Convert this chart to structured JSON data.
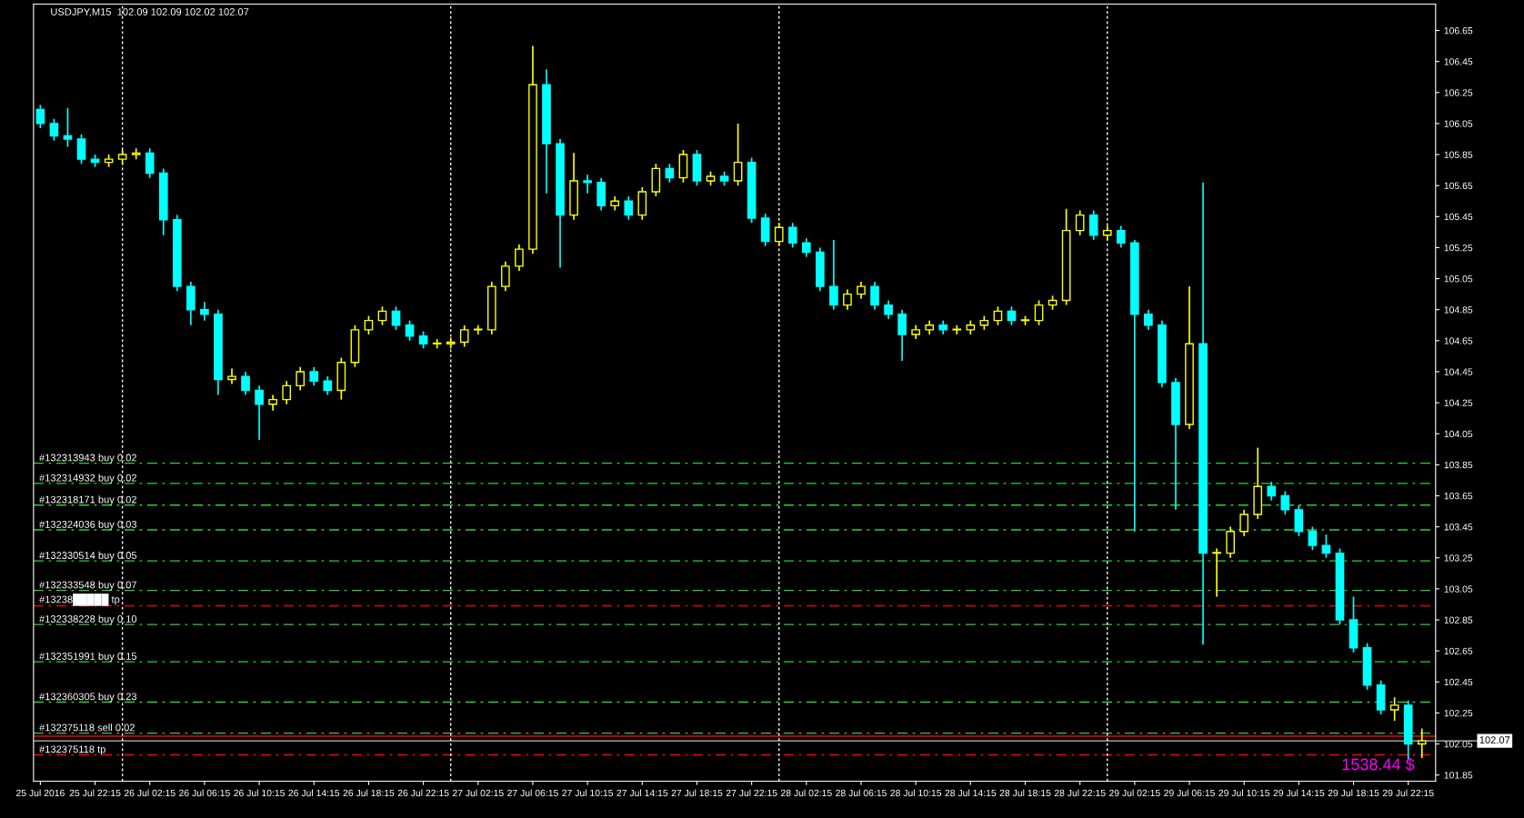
{
  "chart_data": {
    "type": "candlestick",
    "title": "USDJPY,M15  102.09 102.09 102.02 102.07",
    "x": [
      "2016-07-25T18:15",
      "2016-07-25T19:15",
      "2016-07-25T20:15",
      "2016-07-25T21:15",
      "2016-07-25T22:15",
      "2016-07-25T23:15",
      "2016-07-26T00:15",
      "2016-07-26T01:15",
      "2016-07-26T02:15",
      "2016-07-26T03:15",
      "2016-07-26T04:15",
      "2016-07-26T05:15",
      "2016-07-26T06:15",
      "2016-07-26T07:15",
      "2016-07-26T08:15",
      "2016-07-26T09:15",
      "2016-07-26T10:15",
      "2016-07-26T11:15",
      "2016-07-26T12:15",
      "2016-07-26T13:15",
      "2016-07-26T14:15",
      "2016-07-26T15:15",
      "2016-07-26T16:15",
      "2016-07-26T17:15",
      "2016-07-26T18:15",
      "2016-07-26T19:15",
      "2016-07-26T20:15",
      "2016-07-26T21:15",
      "2016-07-26T22:15",
      "2016-07-26T23:15",
      "2016-07-27T00:15",
      "2016-07-27T01:15",
      "2016-07-27T02:15",
      "2016-07-27T03:15",
      "2016-07-27T04:15",
      "2016-07-27T05:15",
      "2016-07-27T06:15",
      "2016-07-27T07:15",
      "2016-07-27T08:15",
      "2016-07-27T09:15",
      "2016-07-27T10:15",
      "2016-07-27T11:15",
      "2016-07-27T12:15",
      "2016-07-27T13:15",
      "2016-07-27T14:15",
      "2016-07-27T15:15",
      "2016-07-27T16:15",
      "2016-07-27T17:15",
      "2016-07-27T18:15",
      "2016-07-27T19:15",
      "2016-07-27T20:15",
      "2016-07-27T21:15",
      "2016-07-27T22:15",
      "2016-07-27T23:15",
      "2016-07-28T00:15",
      "2016-07-28T01:15",
      "2016-07-28T02:15",
      "2016-07-28T03:15",
      "2016-07-28T04:15",
      "2016-07-28T05:15",
      "2016-07-28T06:15",
      "2016-07-28T07:15",
      "2016-07-28T08:15",
      "2016-07-28T09:15",
      "2016-07-28T10:15",
      "2016-07-28T11:15",
      "2016-07-28T12:15",
      "2016-07-28T13:15",
      "2016-07-28T14:15",
      "2016-07-28T15:15",
      "2016-07-28T16:15",
      "2016-07-28T17:15",
      "2016-07-28T18:15",
      "2016-07-28T19:15",
      "2016-07-28T20:15",
      "2016-07-28T21:15",
      "2016-07-28T22:15",
      "2016-07-28T23:15",
      "2016-07-29T00:15",
      "2016-07-29T01:15",
      "2016-07-29T02:15",
      "2016-07-29T03:15",
      "2016-07-29T04:15",
      "2016-07-29T05:15",
      "2016-07-29T06:15",
      "2016-07-29T07:15",
      "2016-07-29T08:15",
      "2016-07-29T09:15",
      "2016-07-29T10:15",
      "2016-07-29T11:15",
      "2016-07-29T12:15",
      "2016-07-29T13:15",
      "2016-07-29T14:15",
      "2016-07-29T15:15",
      "2016-07-29T16:15",
      "2016-07-29T17:15",
      "2016-07-29T18:15",
      "2016-07-29T19:15",
      "2016-07-29T20:15",
      "2016-07-29T21:15",
      "2016-07-29T22:15",
      "2016-07-29T23:15"
    ],
    "ohlc": [
      [
        106.14,
        106.17,
        106.02,
        106.05
      ],
      [
        106.05,
        106.08,
        105.94,
        105.97
      ],
      [
        105.97,
        106.15,
        105.9,
        105.95
      ],
      [
        105.95,
        105.98,
        105.79,
        105.82
      ],
      [
        105.82,
        105.85,
        105.77,
        105.8
      ],
      [
        105.8,
        105.85,
        105.77,
        105.82
      ],
      [
        105.82,
        105.88,
        105.79,
        105.85
      ],
      [
        105.85,
        105.89,
        105.82,
        105.86
      ],
      [
        105.86,
        105.89,
        105.7,
        105.73
      ],
      [
        105.73,
        105.76,
        105.33,
        105.43
      ],
      [
        105.43,
        105.46,
        104.97,
        105.0
      ],
      [
        105.0,
        105.03,
        104.75,
        104.85
      ],
      [
        104.85,
        104.9,
        104.78,
        104.82
      ],
      [
        104.82,
        104.85,
        104.3,
        104.4
      ],
      [
        104.4,
        104.47,
        104.37,
        104.42
      ],
      [
        104.42,
        104.45,
        104.3,
        104.33
      ],
      [
        104.33,
        104.36,
        104.01,
        104.24
      ],
      [
        104.24,
        104.3,
        104.2,
        104.27
      ],
      [
        104.27,
        104.39,
        104.24,
        104.36
      ],
      [
        104.36,
        104.48,
        104.33,
        104.45
      ],
      [
        104.45,
        104.48,
        104.36,
        104.39
      ],
      [
        104.39,
        104.42,
        104.3,
        104.33
      ],
      [
        104.33,
        104.54,
        104.27,
        104.51
      ],
      [
        104.51,
        104.75,
        104.48,
        104.72
      ],
      [
        104.72,
        104.81,
        104.69,
        104.78
      ],
      [
        104.78,
        104.87,
        104.75,
        104.84
      ],
      [
        104.84,
        104.87,
        104.72,
        104.75
      ],
      [
        104.75,
        104.78,
        104.65,
        104.68
      ],
      [
        104.68,
        104.71,
        104.6,
        104.63
      ],
      [
        104.63,
        104.66,
        104.6,
        104.63
      ],
      [
        104.63,
        104.67,
        104.6,
        104.64
      ],
      [
        104.64,
        104.75,
        104.61,
        104.72
      ],
      [
        104.72,
        104.75,
        104.69,
        104.72
      ],
      [
        104.72,
        105.03,
        104.69,
        105.0
      ],
      [
        105.0,
        105.16,
        104.97,
        105.13
      ],
      [
        105.13,
        105.27,
        105.1,
        105.24
      ],
      [
        105.24,
        106.55,
        105.21,
        106.3
      ],
      [
        106.3,
        106.4,
        105.6,
        105.92
      ],
      [
        105.92,
        105.95,
        105.12,
        105.46
      ],
      [
        105.46,
        105.86,
        105.43,
        105.68
      ],
      [
        105.68,
        105.72,
        105.6,
        105.67
      ],
      [
        105.67,
        105.7,
        105.49,
        105.52
      ],
      [
        105.52,
        105.58,
        105.49,
        105.55
      ],
      [
        105.55,
        105.58,
        105.43,
        105.46
      ],
      [
        105.46,
        105.64,
        105.43,
        105.61
      ],
      [
        105.61,
        105.79,
        105.58,
        105.76
      ],
      [
        105.76,
        105.79,
        105.67,
        105.7
      ],
      [
        105.7,
        105.88,
        105.67,
        105.85
      ],
      [
        105.85,
        105.88,
        105.65,
        105.68
      ],
      [
        105.68,
        105.74,
        105.65,
        105.71
      ],
      [
        105.71,
        105.74,
        105.65,
        105.68
      ],
      [
        105.68,
        106.05,
        105.65,
        105.8
      ],
      [
        105.8,
        105.83,
        105.41,
        105.44
      ],
      [
        105.44,
        105.47,
        105.26,
        105.29
      ],
      [
        105.29,
        105.41,
        105.26,
        105.38
      ],
      [
        105.38,
        105.41,
        105.25,
        105.28
      ],
      [
        105.28,
        105.31,
        105.19,
        105.22
      ],
      [
        105.22,
        105.25,
        104.97,
        105.0
      ],
      [
        105.0,
        105.3,
        104.85,
        104.88
      ],
      [
        104.88,
        104.98,
        104.85,
        104.95
      ],
      [
        104.95,
        105.03,
        104.92,
        105.0
      ],
      [
        105.0,
        105.03,
        104.85,
        104.88
      ],
      [
        104.88,
        104.91,
        104.79,
        104.82
      ],
      [
        104.82,
        104.85,
        104.52,
        104.69
      ],
      [
        104.69,
        104.75,
        104.66,
        104.72
      ],
      [
        104.72,
        104.78,
        104.69,
        104.75
      ],
      [
        104.75,
        104.78,
        104.69,
        104.72
      ],
      [
        104.72,
        104.75,
        104.69,
        104.72
      ],
      [
        104.72,
        104.78,
        104.69,
        104.75
      ],
      [
        104.75,
        104.81,
        104.72,
        104.78
      ],
      [
        104.78,
        104.87,
        104.75,
        104.84
      ],
      [
        104.84,
        104.87,
        104.75,
        104.78
      ],
      [
        104.78,
        104.81,
        104.75,
        104.78
      ],
      [
        104.78,
        104.91,
        104.75,
        104.88
      ],
      [
        104.88,
        104.94,
        104.85,
        104.91
      ],
      [
        104.91,
        105.5,
        104.88,
        105.36
      ],
      [
        105.36,
        105.49,
        105.33,
        105.46
      ],
      [
        105.46,
        105.49,
        105.3,
        105.33
      ],
      [
        105.33,
        105.39,
        105.3,
        105.36
      ],
      [
        105.36,
        105.39,
        105.25,
        105.28
      ],
      [
        105.28,
        105.3,
        103.42,
        104.82
      ],
      [
        104.82,
        104.85,
        104.72,
        104.75
      ],
      [
        104.75,
        104.78,
        104.35,
        104.38
      ],
      [
        104.38,
        104.41,
        103.56,
        104.11
      ],
      [
        104.11,
        105.0,
        104.08,
        104.63
      ],
      [
        104.63,
        105.67,
        102.69,
        103.28
      ],
      [
        103.28,
        103.31,
        103.0,
        103.28
      ],
      [
        103.28,
        103.45,
        103.25,
        103.42
      ],
      [
        103.42,
        103.56,
        103.39,
        103.53
      ],
      [
        103.53,
        103.96,
        103.5,
        103.71
      ],
      [
        103.71,
        103.74,
        103.62,
        103.65
      ],
      [
        103.65,
        103.68,
        103.53,
        103.56
      ],
      [
        103.56,
        103.59,
        103.39,
        103.42
      ],
      [
        103.42,
        103.45,
        103.3,
        103.33
      ],
      [
        103.33,
        103.4,
        103.25,
        103.28
      ],
      [
        103.28,
        103.31,
        102.82,
        102.85
      ],
      [
        102.85,
        103.0,
        102.64,
        102.67
      ],
      [
        102.67,
        102.7,
        102.4,
        102.43
      ],
      [
        102.43,
        102.46,
        102.24,
        102.27
      ],
      [
        102.27,
        102.35,
        102.2,
        102.3
      ],
      [
        102.3,
        102.33,
        101.95,
        102.05
      ],
      [
        102.05,
        102.15,
        101.96,
        102.07
      ]
    ],
    "colors": [
      "#00ffff",
      "#00ffff",
      "#00ffff",
      "#00ffff",
      "#00ffff",
      "#ffff00",
      "#ffff00",
      "#ffff00",
      "#00ffff",
      "#00ffff",
      "#00ffff",
      "#00ffff",
      "#00ffff",
      "#00ffff",
      "#ffff00",
      "#00ffff",
      "#00ffff",
      "#ffff00",
      "#ffff00",
      "#ffff00",
      "#00ffff",
      "#00ffff",
      "#ffff00",
      "#ffff00",
      "#ffff00",
      "#ffff00",
      "#00ffff",
      "#00ffff",
      "#00ffff",
      "#ffff00",
      "#ffff00",
      "#ffff00",
      "#ffff00",
      "#ffff00",
      "#ffff00",
      "#ffff00",
      "#ffff00",
      "#00ffff",
      "#00ffff",
      "#ffff00",
      "#00ffff",
      "#00ffff",
      "#ffff00",
      "#00ffff",
      "#ffff00",
      "#ffff00",
      "#00ffff",
      "#ffff00",
      "#00ffff",
      "#ffff00",
      "#00ffff",
      "#ffff00",
      "#00ffff",
      "#00ffff",
      "#ffff00",
      "#00ffff",
      "#00ffff",
      "#00ffff",
      "#00ffff",
      "#ffff00",
      "#ffff00",
      "#00ffff",
      "#00ffff",
      "#00ffff",
      "#ffff00",
      "#ffff00",
      "#00ffff",
      "#ffff00",
      "#ffff00",
      "#ffff00",
      "#ffff00",
      "#00ffff",
      "#ffff00",
      "#ffff00",
      "#ffff00",
      "#ffff00",
      "#ffff00",
      "#00ffff",
      "#ffff00",
      "#00ffff",
      "#00ffff",
      "#00ffff",
      "#00ffff",
      "#00ffff",
      "#ffff00",
      "#00ffff",
      "#ffff00",
      "#ffff00",
      "#ffff00",
      "#ffff00",
      "#00ffff",
      "#00ffff",
      "#00ffff",
      "#00ffff",
      "#00ffff",
      "#00ffff",
      "#00ffff",
      "#00ffff",
      "#00ffff",
      "#ffff00",
      "#00ffff",
      "#ffff00"
    ],
    "xlim": [
      "2016-07-25T17:45",
      "2016-07-30T00:15"
    ],
    "xticks": [
      {
        "value": "2016-07-25T18:15",
        "label": "25 Jul 2016"
      },
      {
        "value": "2016-07-25T22:15",
        "label": "25 Jul 22:15"
      },
      {
        "value": "2016-07-26T02:15",
        "label": "26 Jul 02:15"
      },
      {
        "value": "2016-07-26T06:15",
        "label": "26 Jul 06:15"
      },
      {
        "value": "2016-07-26T10:15",
        "label": "26 Jul 10:15"
      },
      {
        "value": "2016-07-26T14:15",
        "label": "26 Jul 14:15"
      },
      {
        "value": "2016-07-26T18:15",
        "label": "26 Jul 18:15"
      },
      {
        "value": "2016-07-26T22:15",
        "label": "26 Jul 22:15"
      },
      {
        "value": "2016-07-27T02:15",
        "label": "27 Jul 02:15"
      },
      {
        "value": "2016-07-27T06:15",
        "label": "27 Jul 06:15"
      },
      {
        "value": "2016-07-27T10:15",
        "label": "27 Jul 10:15"
      },
      {
        "value": "2016-07-27T14:15",
        "label": "27 Jul 14:15"
      },
      {
        "value": "2016-07-27T18:15",
        "label": "27 Jul 18:15"
      },
      {
        "value": "2016-07-27T22:15",
        "label": "27 Jul 22:15"
      },
      {
        "value": "2016-07-28T02:15",
        "label": "28 Jul 02:15"
      },
      {
        "value": "2016-07-28T06:15",
        "label": "28 Jul 06:15"
      },
      {
        "value": "2016-07-28T10:15",
        "label": "28 Jul 10:15"
      },
      {
        "value": "2016-07-28T14:15",
        "label": "28 Jul 14:15"
      },
      {
        "value": "2016-07-28T18:15",
        "label": "28 Jul 18:15"
      },
      {
        "value": "2016-07-28T22:15",
        "label": "28 Jul 22:15"
      },
      {
        "value": "2016-07-29T02:15",
        "label": "29 Jul 02:15"
      },
      {
        "value": "2016-07-29T06:15",
        "label": "29 Jul 06:15"
      },
      {
        "value": "2016-07-29T10:15",
        "label": "29 Jul 10:15"
      },
      {
        "value": "2016-07-29T14:15",
        "label": "29 Jul 14:15"
      },
      {
        "value": "2016-07-29T18:15",
        "label": "29 Jul 18:15"
      },
      {
        "value": "2016-07-29T22:15",
        "label": "29 Jul 22:15"
      }
    ],
    "ylim": [
      101.81,
      106.82
    ],
    "yticks": [
      101.85,
      102.05,
      102.25,
      102.45,
      102.65,
      102.85,
      103.05,
      103.25,
      103.45,
      103.65,
      103.85,
      104.05,
      104.25,
      104.45,
      104.65,
      104.85,
      105.05,
      105.25,
      105.45,
      105.65,
      105.85,
      106.05,
      106.25,
      106.45,
      106.65
    ],
    "grid": false,
    "ref_lines": [
      {
        "axis": "y",
        "value": 103.86,
        "label": "#132313943 buy 0.02",
        "color": "#32cd32",
        "line_style": "dashed"
      },
      {
        "axis": "y",
        "value": 103.73,
        "label": "#132314932 buy 0.02",
        "color": "#32cd32",
        "line_style": "dashed"
      },
      {
        "axis": "y",
        "value": 103.59,
        "label": "#132318171 buy 0.02",
        "color": "#32cd32",
        "line_style": "dashed"
      },
      {
        "axis": "y",
        "value": 103.43,
        "label": "#132324036 buy 0.03",
        "color": "#32cd32",
        "line_style": "dashed"
      },
      {
        "axis": "y",
        "value": 103.23,
        "label": "#132330514 buy 0.05",
        "color": "#32cd32",
        "line_style": "dashed"
      },
      {
        "axis": "y",
        "value": 103.04,
        "label": "#132333548 buy 0.07",
        "color": "#32cd32",
        "line_style": "dashed"
      },
      {
        "axis": "y",
        "value": 102.94,
        "label": "#13238█████ tp",
        "color": "#ff0000",
        "line_style": "dashed"
      },
      {
        "axis": "y",
        "value": 102.82,
        "label": "#132338228 buy 0.10",
        "color": "#32cd32",
        "line_style": "dashed"
      },
      {
        "axis": "y",
        "value": 102.58,
        "label": "#132351991 buy 0.15",
        "color": "#32cd32",
        "line_style": "dashed"
      },
      {
        "axis": "y",
        "value": 102.32,
        "label": "#132360305 buy 0.23",
        "color": "#32cd32",
        "line_style": "dashed"
      },
      {
        "axis": "y",
        "value": 102.12,
        "label": "#132375118 sell 0.02",
        "color": "#32cd32",
        "line_style": "dashed"
      },
      {
        "axis": "y",
        "value": 102.1,
        "color": "#ff0000",
        "line_style": "solid"
      },
      {
        "axis": "y",
        "value": 102.07,
        "label": "102.07",
        "color": "#c0c0c0",
        "line_style": "solid"
      },
      {
        "axis": "y",
        "value": 101.98,
        "label": "#132375118 tp",
        "color": "#ff0000",
        "line_style": "dashed"
      },
      {
        "axis": "x",
        "value": "2016-07-26T00:15",
        "color": "#ffffff",
        "line_style": "dotted"
      },
      {
        "axis": "x",
        "value": "2016-07-27T00:15",
        "color": "#ffffff",
        "line_style": "dotted"
      },
      {
        "axis": "x",
        "value": "2016-07-28T00:15",
        "color": "#ffffff",
        "line_style": "dotted"
      },
      {
        "axis": "x",
        "value": "2016-07-29T00:15",
        "color": "#ffffff",
        "line_style": "dotted"
      }
    ],
    "annotations": [
      "1538.44 $"
    ]
  }
}
